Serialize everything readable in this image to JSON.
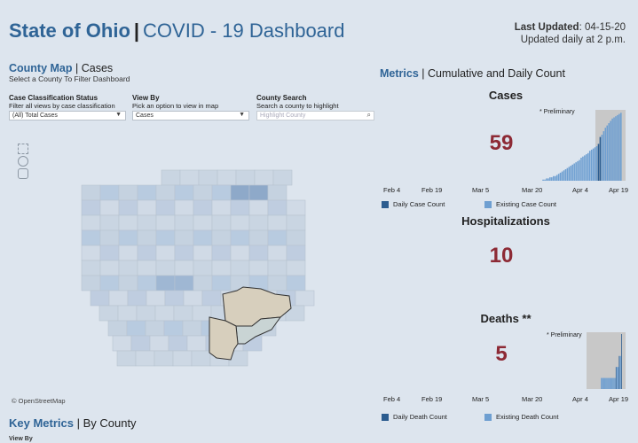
{
  "header": {
    "title_state": "State of Ohio",
    "title_sep": "|",
    "title_rest": "COVID - 19 Dashboard",
    "last_updated_label": "Last Updated",
    "last_updated_value": ": 04-15-20",
    "update_schedule": "Updated daily at 2 p.m."
  },
  "county_map": {
    "heading_bold": "County Map",
    "heading_rest": " | Cases",
    "subheading": "Select a County To Filter Dashboard",
    "controls": {
      "classification": {
        "label": "Case Classification Status",
        "hint": "Filter all views by case classification",
        "value": "(All) Total Cases"
      },
      "view_by": {
        "label": "View By",
        "hint": "Pick an option to view in map",
        "value": "Cases"
      },
      "search": {
        "label": "County Search",
        "hint": "Search a county to highlight",
        "placeholder": "Highlight County"
      }
    },
    "attribution": "© OpenStreetMap"
  },
  "key_metrics": {
    "heading_bold": "Key Metrics",
    "heading_rest": " | By County",
    "view_by_label": "View By"
  },
  "metrics": {
    "heading_bold": "Metrics",
    "heading_rest": " | Cumulative and Daily Count",
    "cases": {
      "title": "Cases",
      "value": "59",
      "prelim": "* Preliminary"
    },
    "hospitalizations": {
      "title": "Hospitalizations",
      "value": "10"
    },
    "deaths": {
      "title": "Deaths **",
      "value": "5",
      "prelim": "* Preliminary"
    },
    "x_ticks": [
      "Feb 4",
      "Feb 19",
      "Mar 5",
      "Mar 20",
      "Apr 4",
      "Apr 19"
    ],
    "cases_legend": [
      "Daily Case Count",
      "Existing Case Count"
    ],
    "deaths_legend": [
      "Daily Death Count",
      "Existing Death Count"
    ]
  },
  "colors": {
    "daily": "#2b5c8f",
    "existing": "#6e9fd1",
    "value": "#8d2a35",
    "accent": "#2f6496"
  },
  "chart_data": [
    {
      "type": "bar",
      "title": "Cases",
      "xlabel": "",
      "ylabel": "",
      "series": [
        {
          "name": "Existing Case Count",
          "values": [
            0,
            0,
            0,
            0,
            0,
            0,
            0,
            0,
            0,
            0,
            0,
            0,
            0,
            0,
            0,
            0,
            0,
            0,
            0,
            0,
            0,
            0,
            0,
            0,
            0,
            0,
            0,
            0,
            0,
            0,
            0,
            0,
            0,
            0,
            1,
            1,
            2,
            2,
            3,
            3,
            4,
            4,
            5,
            6,
            7,
            8,
            9,
            10,
            11,
            12,
            13,
            14,
            15,
            16,
            17,
            18,
            20,
            21,
            22,
            23,
            24,
            26,
            27,
            28,
            29,
            30,
            32,
            38,
            40,
            43,
            46,
            48,
            50,
            52,
            54,
            55,
            56,
            57,
            58,
            59
          ]
        }
      ],
      "ylim": [
        0,
        60
      ]
    },
    {
      "type": "bar",
      "title": "Deaths **",
      "xlabel": "",
      "ylabel": "",
      "series": [
        {
          "name": "Existing Death Count",
          "values": [
            0,
            0,
            0,
            0,
            0,
            0,
            0,
            0,
            0,
            0,
            0,
            0,
            0,
            0,
            0,
            0,
            0,
            0,
            0,
            0,
            0,
            0,
            0,
            0,
            0,
            0,
            0,
            0,
            0,
            0,
            0,
            0,
            0,
            0,
            0,
            0,
            0,
            0,
            0,
            0,
            0,
            0,
            0,
            0,
            0,
            0,
            0,
            0,
            0,
            0,
            0,
            0,
            0,
            0,
            1,
            1,
            1,
            1,
            1,
            1,
            1,
            1,
            1,
            1,
            1,
            1,
            1,
            1,
            1,
            1,
            1,
            1,
            1,
            2,
            2,
            2,
            2,
            3,
            3,
            3,
            5
          ]
        }
      ],
      "ylim": [
        0,
        5
      ]
    }
  ]
}
